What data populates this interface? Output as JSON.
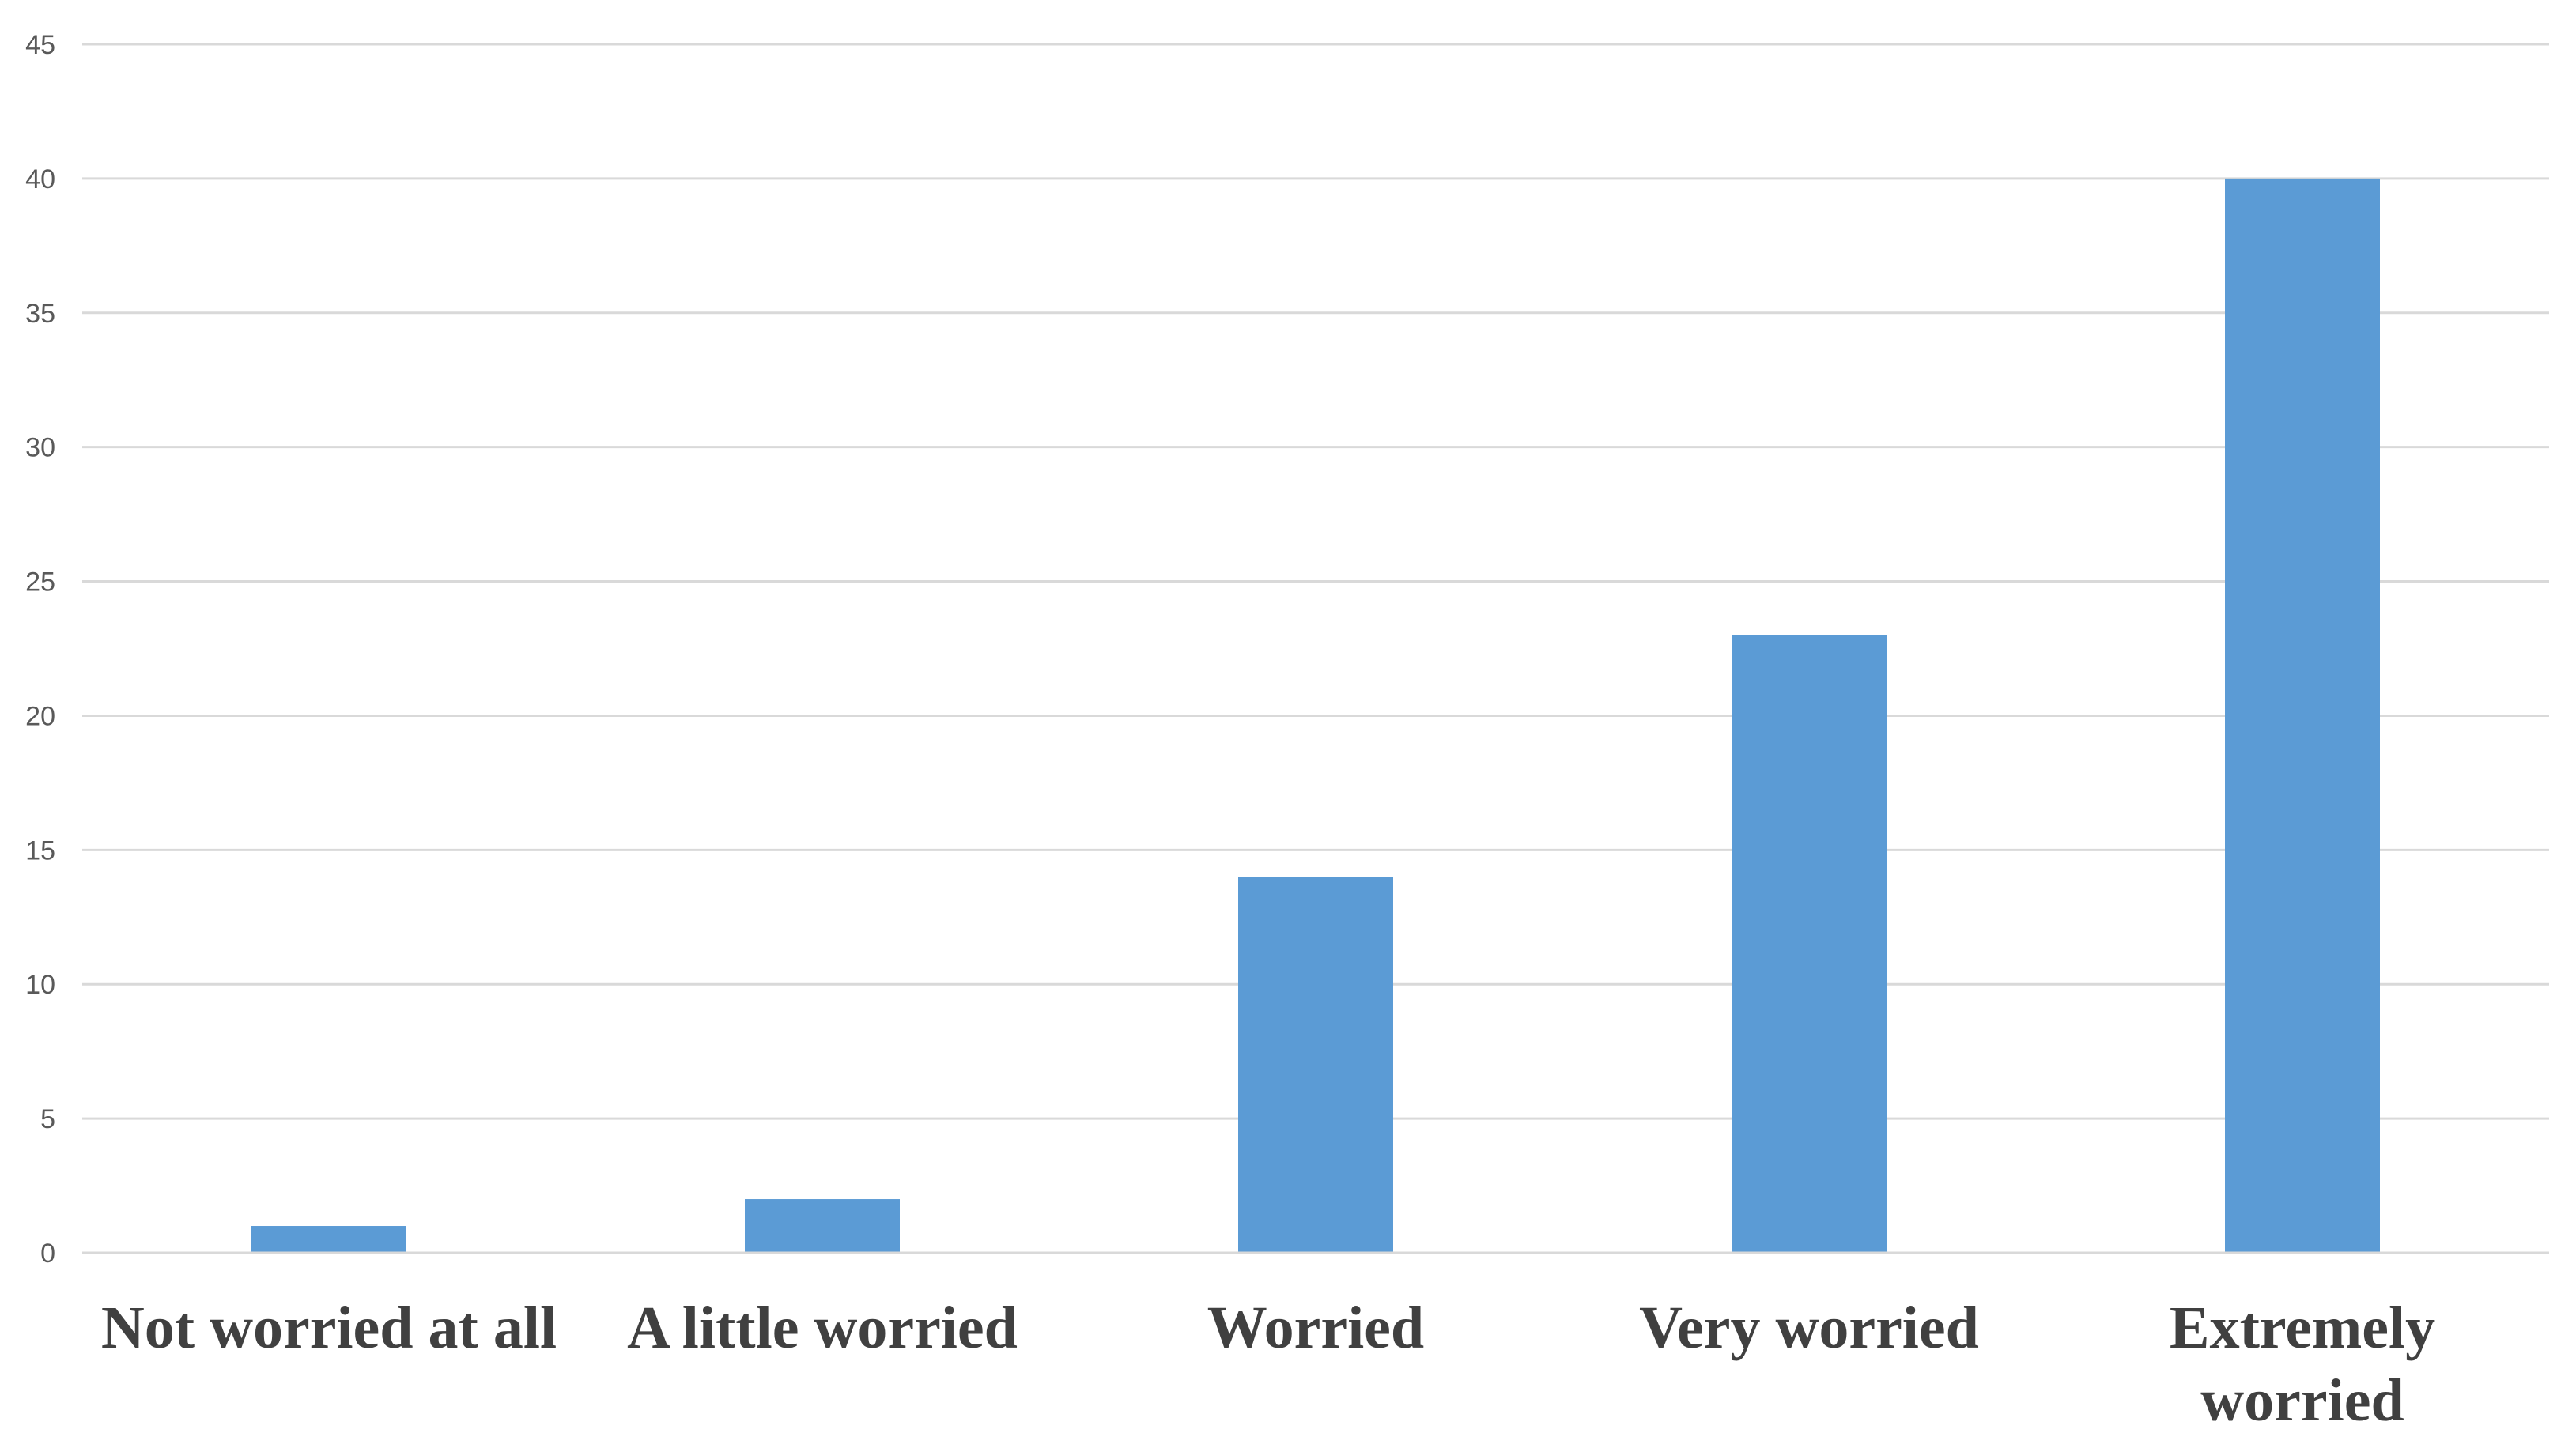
{
  "chart_data": {
    "type": "bar",
    "title": "",
    "xlabel": "",
    "ylabel": "",
    "categories": [
      [
        "Not worried at all"
      ],
      [
        "A little worried"
      ],
      [
        "Worried"
      ],
      [
        "Very worried"
      ],
      [
        "Extremely",
        "worried"
      ]
    ],
    "values": [
      1,
      2,
      14,
      23,
      40
    ],
    "ylim": [
      0,
      45
    ],
    "yticks": [
      "0",
      "5",
      "10",
      "15",
      "20",
      "25",
      "30",
      "35",
      "40",
      "45"
    ],
    "grid": true,
    "legend": "none",
    "bar_color": "#5b9bd5"
  }
}
